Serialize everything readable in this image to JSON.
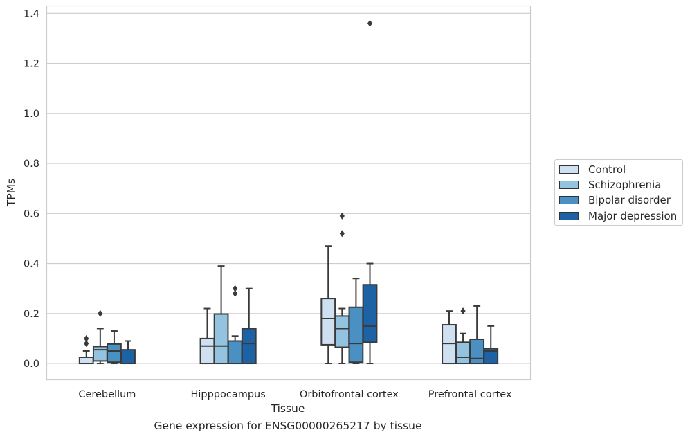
{
  "chart_data": {
    "type": "box",
    "xlabel": "Tissue",
    "ylabel": "TPMs",
    "caption": "Gene expression for ENSG00000265217 by tissue",
    "ylim": [
      -0.065,
      1.43
    ],
    "yticks": [
      0.0,
      0.2,
      0.4,
      0.6,
      0.8,
      1.0,
      1.2,
      1.4
    ],
    "ytick_labels": [
      "0.0",
      "0.2",
      "0.4",
      "0.6",
      "0.8",
      "1.0",
      "1.2",
      "1.4"
    ],
    "categories": [
      "Cerebellum",
      "Hipppocampus",
      "Orbitofrontal cortex",
      "Prefrontal cortex"
    ],
    "grid": "horizontal",
    "legend_position": "right",
    "colors": [
      "#cfe0f0",
      "#94c3df",
      "#4a90c2",
      "#1e62a6"
    ],
    "series": [
      {
        "name": "Control",
        "boxes": [
          {
            "whislo": 0.0,
            "q1": 0.0,
            "med": 0.0,
            "q3": 0.025,
            "whishi": 0.05,
            "fliers": [
              0.08,
              0.1
            ]
          },
          {
            "whislo": 0.0,
            "q1": 0.0,
            "med": 0.07,
            "q3": 0.1,
            "whishi": 0.22,
            "fliers": []
          },
          {
            "whislo": 0.0,
            "q1": 0.075,
            "med": 0.18,
            "q3": 0.26,
            "whishi": 0.47,
            "fliers": []
          },
          {
            "whislo": 0.0,
            "q1": 0.0,
            "med": 0.08,
            "q3": 0.155,
            "whishi": 0.21,
            "fliers": []
          }
        ]
      },
      {
        "name": "Schizophrenia",
        "boxes": [
          {
            "whislo": 0.0,
            "q1": 0.01,
            "med": 0.055,
            "q3": 0.068,
            "whishi": 0.14,
            "fliers": [
              0.2
            ]
          },
          {
            "whislo": 0.0,
            "q1": 0.0,
            "med": 0.07,
            "q3": 0.198,
            "whishi": 0.39,
            "fliers": []
          },
          {
            "whislo": 0.0,
            "q1": 0.065,
            "med": 0.14,
            "q3": 0.19,
            "whishi": 0.22,
            "fliers": [
              0.52,
              0.59
            ]
          },
          {
            "whislo": 0.0,
            "q1": 0.0,
            "med": 0.025,
            "q3": 0.085,
            "whishi": 0.12,
            "fliers": [
              0.21
            ]
          }
        ]
      },
      {
        "name": "Bipolar disorder",
        "boxes": [
          {
            "whislo": 0.0,
            "q1": 0.005,
            "med": 0.05,
            "q3": 0.078,
            "whishi": 0.13,
            "fliers": []
          },
          {
            "whislo": 0.0,
            "q1": 0.0,
            "med": 0.0,
            "q3": 0.09,
            "whishi": 0.11,
            "fliers": [
              0.28,
              0.3
            ]
          },
          {
            "whislo": 0.0,
            "q1": 0.005,
            "med": 0.08,
            "q3": 0.225,
            "whishi": 0.34,
            "fliers": []
          },
          {
            "whislo": 0.0,
            "q1": 0.0,
            "med": 0.02,
            "q3": 0.097,
            "whishi": 0.23,
            "fliers": []
          }
        ]
      },
      {
        "name": "Major depression",
        "boxes": [
          {
            "whislo": 0.0,
            "q1": 0.0,
            "med": 0.0,
            "q3": 0.055,
            "whishi": 0.09,
            "fliers": []
          },
          {
            "whislo": 0.0,
            "q1": 0.0,
            "med": 0.08,
            "q3": 0.14,
            "whishi": 0.3,
            "fliers": []
          },
          {
            "whislo": 0.0,
            "q1": 0.085,
            "med": 0.15,
            "q3": 0.315,
            "whishi": 0.4,
            "fliers": [
              1.36
            ]
          },
          {
            "whislo": 0.0,
            "q1": 0.0,
            "med": 0.05,
            "q3": 0.06,
            "whishi": 0.15,
            "fliers": []
          }
        ]
      }
    ]
  }
}
